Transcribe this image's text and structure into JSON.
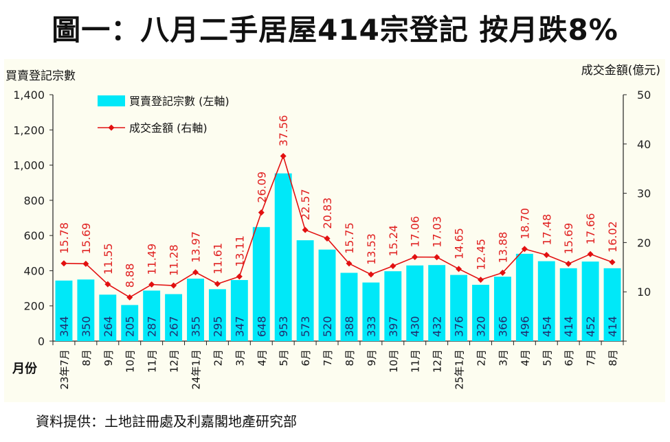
{
  "title": "圖一：八月二手居屋414宗登記 按月跌8%",
  "source": "資料提供：土地註冊處及利嘉閣地產研究部",
  "chart_data": {
    "type": "bar+line",
    "left_axis_title": "買賣登記宗數",
    "right_axis_title": "成交金額(億元)",
    "x_axis_title": "月份",
    "y_left": {
      "min": 0,
      "max": 1400,
      "step": 200,
      "tick_labels": [
        "0",
        "200",
        "400",
        "600",
        "800",
        "1,000",
        "1,200",
        "1,400"
      ]
    },
    "y_right": {
      "min": 0,
      "max": 50,
      "step": 10,
      "tick_labels": [
        "10",
        "20",
        "30",
        "40",
        "50"
      ]
    },
    "categories": [
      "23年7月",
      "8月",
      "9月",
      "10月",
      "11月",
      "12月",
      "24年1月",
      "2月",
      "3月",
      "4月",
      "5月",
      "6月",
      "7月",
      "8月",
      "9月",
      "10月",
      "11月",
      "12月",
      "25年1月",
      "2月",
      "3月",
      "4月",
      "5月",
      "6月",
      "7月",
      "8月"
    ],
    "series": [
      {
        "name": "買賣登記宗數 (左軸)",
        "type": "bar",
        "axis": "left",
        "color": "#00e8f8",
        "values": [
          344,
          350,
          264,
          205,
          287,
          267,
          355,
          295,
          347,
          648,
          953,
          573,
          520,
          388,
          333,
          397,
          430,
          432,
          376,
          320,
          366,
          496,
          454,
          414,
          452,
          414
        ],
        "labels": [
          "344",
          "350",
          "264",
          "205",
          "287",
          "267",
          "355",
          "295",
          "347",
          "648",
          "953",
          "573",
          "520",
          "388",
          "333",
          "397",
          "430",
          "432",
          "376",
          "320",
          "366",
          "496",
          "454",
          "414",
          "452",
          "414"
        ]
      },
      {
        "name": "成交金額 (右軸)",
        "type": "line",
        "axis": "right",
        "color": "#e21010",
        "values": [
          15.78,
          15.69,
          11.55,
          8.88,
          11.49,
          11.28,
          13.97,
          11.61,
          13.11,
          26.09,
          37.56,
          22.57,
          20.83,
          15.75,
          13.53,
          15.24,
          17.06,
          17.03,
          14.65,
          12.45,
          13.88,
          18.7,
          17.48,
          15.69,
          17.66,
          16.02
        ],
        "labels": [
          "15.78",
          "15.69",
          "11.55",
          "8.88",
          "11.49",
          "11.28",
          "13.97",
          "11.61",
          "13.11",
          "26.09",
          "37.56",
          "22.57",
          "20.83",
          "15.75",
          "13.53",
          "15.24",
          "17.06",
          "17.03",
          "14.65",
          "12.45",
          "13.88",
          "18.70",
          "17.48",
          "15.69",
          "17.66",
          "16.02"
        ]
      }
    ],
    "year_dividers_after": [
      "23年12月",
      "24年12月"
    ],
    "legend_position": "top-left"
  }
}
